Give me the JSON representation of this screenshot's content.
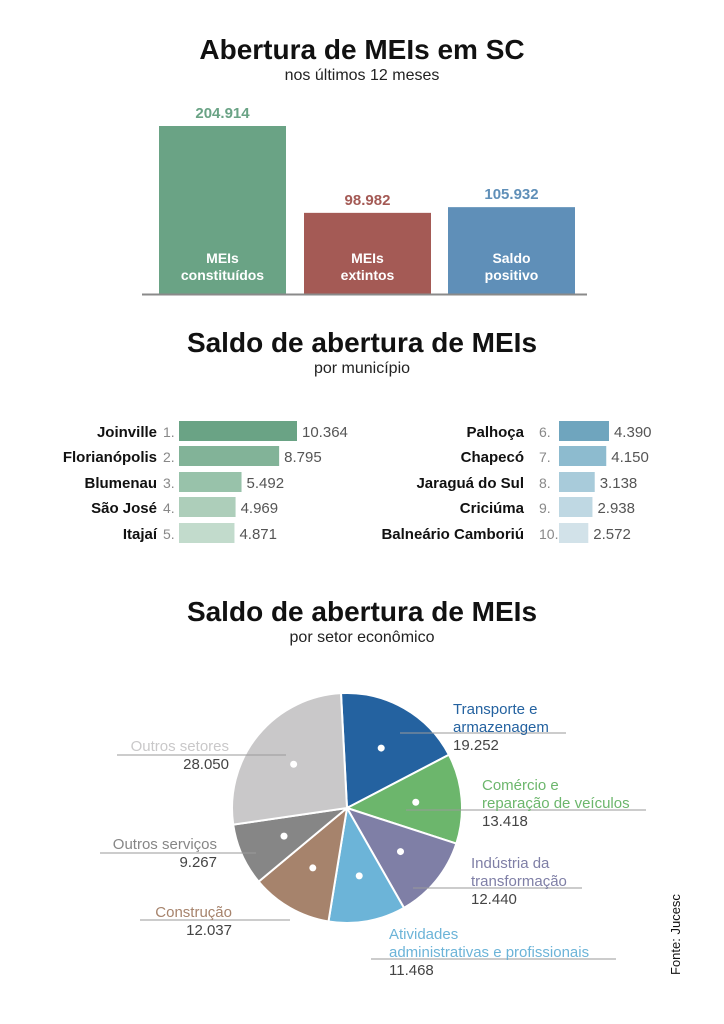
{
  "chart_data": [
    {
      "type": "bar",
      "title": "Abertura de MEIs em SC",
      "subtitle": "nos últimos 12 meses",
      "categories": [
        "MEIs constituídos",
        "MEIs extintos",
        "Saldo positivo"
      ],
      "category_lines": [
        [
          "MEIs",
          "constituídos"
        ],
        [
          "MEIs",
          "extintos"
        ],
        [
          "Saldo",
          "positivo"
        ]
      ],
      "values": [
        204914,
        98982,
        105932
      ],
      "value_labels": [
        "204.914",
        "98.982",
        "105.932"
      ],
      "colors": [
        "#6aa385",
        "#a45a55",
        "#5f8fb8"
      ]
    },
    {
      "type": "bar",
      "orientation": "horizontal",
      "title": "Saldo de abertura de MEIs",
      "subtitle": "por município",
      "categories": [
        "Joinville",
        "Florianópolis",
        "Blumenau",
        "São José",
        "Itajaí",
        "Palhoça",
        "Chapecó",
        "Jaraguá do Sul",
        "Criciúma",
        "Balneário Camboriú"
      ],
      "ranks": [
        "1.",
        "2.",
        "3.",
        "4.",
        "5.",
        "6.",
        "7.",
        "8.",
        "9.",
        "10."
      ],
      "values": [
        10364,
        8795,
        5492,
        4969,
        4871,
        4390,
        4150,
        3138,
        2938,
        2572
      ],
      "value_labels": [
        "10.364",
        "8.795",
        "5.492",
        "4.969",
        "4.871",
        "4.390",
        "4.150",
        "3.138",
        "2.938",
        "2.572"
      ],
      "colors": [
        "#6aa385",
        "#82b398",
        "#98c2aa",
        "#adceba",
        "#c2dbcc",
        "#6fa5be",
        "#8dbbcf",
        "#a8cbda",
        "#bfd8e3",
        "#d2e2e9"
      ]
    },
    {
      "type": "pie",
      "title": "Saldo de abertura de MEIs",
      "subtitle": "por setor econômico",
      "slices": [
        {
          "lines": [
            "Transporte e",
            "armazenagem"
          ],
          "value": 19252,
          "value_label": "19.252",
          "color": "#2462a0"
        },
        {
          "lines": [
            "Comércio e",
            "reparação de veículos"
          ],
          "value": 13418,
          "value_label": "13.418",
          "color": "#6cb66c"
        },
        {
          "lines": [
            "Indústria da",
            "transformação"
          ],
          "value": 12440,
          "value_label": "12.440",
          "color": "#7f7fa6"
        },
        {
          "lines": [
            "Atividades",
            "administrativas e profissionais"
          ],
          "value": 11468,
          "value_label": "11.468",
          "color": "#6cb4d8"
        },
        {
          "lines": [
            "Construção"
          ],
          "value": 12037,
          "value_label": "12.037",
          "color": "#a6836c"
        },
        {
          "lines": [
            "Outros serviços"
          ],
          "value": 9267,
          "value_label": "9.267",
          "color": "#868686"
        },
        {
          "lines": [
            "Outros setores"
          ],
          "value": 28050,
          "value_label": "28.050",
          "color": "#c9c8c9"
        }
      ]
    }
  ],
  "source": "Fonte: Jucesc"
}
